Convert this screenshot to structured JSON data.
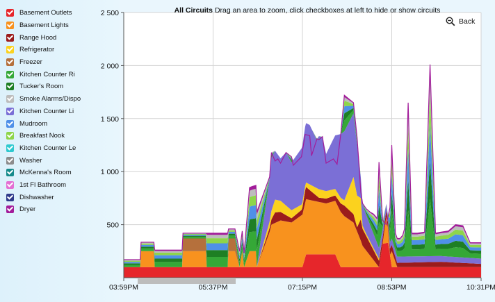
{
  "header": {
    "title": "All Circuits",
    "subtitle": "Drag an area to zoom, click checkboxes at left to hide or show  circuits",
    "back_label": "Back"
  },
  "legend": {
    "items": [
      {
        "label": "Basement Outlets",
        "color": "#e6262b",
        "checked": true
      },
      {
        "label": "Basement Lights",
        "color": "#f8921e",
        "checked": true
      },
      {
        "label": "Range Hood",
        "color": "#9b1c1c",
        "checked": true
      },
      {
        "label": "Refrigerator",
        "color": "#fbd21e",
        "checked": true
      },
      {
        "label": " Freezer",
        "color": "#b5703c",
        "checked": true
      },
      {
        "label": "Kitchen Counter Ri",
        "color": "#35a837",
        "checked": true
      },
      {
        "label": "Tucker's Room",
        "color": "#1e7f24",
        "checked": true
      },
      {
        "label": "Smoke Alarms/Dispo",
        "color": "#bdbdbd",
        "checked": true
      },
      {
        "label": "Kitchen Counter Li",
        "color": "#7b6fd6",
        "checked": true
      },
      {
        "label": "Mudroom",
        "color": "#4f90e8",
        "checked": true
      },
      {
        "label": "Breakfast Nook",
        "color": "#8ed54a",
        "checked": true
      },
      {
        "label": "Kitchen Counter Le",
        "color": "#2ec9cf",
        "checked": true
      },
      {
        "label": "Washer",
        "color": "#8c8c8c",
        "checked": true
      },
      {
        "label": "McKenna's Room",
        "color": "#168b8b",
        "checked": true
      },
      {
        "label": "1st Fl Bathroom",
        "color": "#e46fd3",
        "checked": true
      },
      {
        "label": "Dishwasher",
        "color": "#2f3a8a",
        "checked": true
      },
      {
        "label": "Dryer",
        "color": "#a21c9a",
        "checked": true
      }
    ]
  },
  "chart_data": {
    "type": "area",
    "stacked": true,
    "title": "All Circuits",
    "xlabel": "",
    "ylabel": "",
    "x_domain": [
      0,
      392
    ],
    "x_tick_values": [
      0,
      98,
      196,
      294,
      392
    ],
    "x_tick_labels": [
      "03:59PM",
      "05:37PM",
      "07:15PM",
      "08:53PM",
      "10:31PM"
    ],
    "ylim": [
      0,
      2500
    ],
    "y_tick_values": [
      500,
      1000,
      1500,
      2000,
      2500
    ],
    "y_tick_labels": [
      "500",
      "1 000",
      "1 500",
      "2 000",
      "2 500"
    ],
    "grid": true,
    "legend_position": "left",
    "totals_envelope": {
      "x": [
        0,
        18,
        19,
        33,
        34,
        64,
        65,
        90,
        91,
        114,
        115,
        122,
        127,
        130,
        132,
        138,
        141,
        145,
        146,
        160,
        162,
        166,
        169,
        172,
        178,
        184,
        186,
        195,
        199,
        204,
        206,
        212,
        214,
        218,
        222,
        230,
        234,
        238,
        242,
        252,
        256,
        260,
        262,
        266,
        270,
        274,
        278,
        280,
        284,
        288,
        292,
        294,
        298,
        300,
        303,
        306,
        308,
        312,
        316,
        322,
        330,
        336,
        342,
        348,
        356,
        364,
        372,
        380,
        392
      ],
      "y": [
        170,
        170,
        335,
        335,
        260,
        260,
        420,
        420,
        420,
        420,
        460,
        460,
        250,
        440,
        230,
        850,
        860,
        870,
        620,
        950,
        1180,
        1100,
        1120,
        1080,
        1180,
        1140,
        1060,
        1140,
        1350,
        1340,
        1150,
        1310,
        1300,
        1330,
        1080,
        1120,
        1070,
        1350,
        1720,
        1650,
        1320,
        810,
        700,
        650,
        620,
        600,
        560,
        1090,
        540,
        500,
        660,
        1250,
        420,
        370,
        370,
        400,
        460,
        1650,
        420,
        420,
        430,
        2010,
        420,
        430,
        440,
        500,
        490,
        330,
        330
      ]
    },
    "series": [
      {
        "name": "Basement Outlets",
        "x": [
          0,
          196,
          200,
          232,
          238,
          280,
          284,
          290,
          294,
          330,
          334,
          392
        ],
        "values": [
          100,
          100,
          220,
          220,
          100,
          100,
          320,
          330,
          100,
          100,
          100,
          100
        ]
      },
      {
        "name": "Basement Lights",
        "x": [
          0,
          18,
          19,
          33,
          34,
          64,
          65,
          90,
          91,
          114,
          115,
          122,
          127,
          130,
          132,
          138,
          145,
          146,
          160,
          162,
          172,
          184,
          200,
          222,
          238,
          242,
          252,
          260,
          262,
          280,
          284,
          288,
          292,
          294,
          300,
          392
        ],
        "values": [
          0,
          0,
          150,
          150,
          0,
          0,
          150,
          150,
          0,
          0,
          150,
          150,
          0,
          150,
          0,
          150,
          150,
          0,
          330,
          400,
          440,
          420,
          520,
          480,
          520,
          480,
          420,
          250,
          200,
          0,
          0,
          250,
          0,
          150,
          0,
          0
        ]
      },
      {
        "name": "Range Hood",
        "x": [
          0,
          146,
          160,
          162,
          166,
          184,
          195,
          199,
          214,
          230,
          232,
          242,
          252,
          256,
          260,
          262,
          280,
          284,
          290,
          294,
          300,
          348,
          392
        ],
        "values": [
          0,
          0,
          40,
          50,
          100,
          40,
          50,
          120,
          40,
          50,
          50,
          100,
          80,
          40,
          200,
          160,
          60,
          60,
          60,
          60,
          40,
          50,
          30
        ]
      },
      {
        "name": "Refrigerator",
        "x": [
          0,
          146,
          160,
          162,
          166,
          199,
          214,
          242,
          252,
          256,
          260,
          262,
          266,
          280,
          284,
          288,
          292,
          294,
          300,
          392
        ],
        "values": [
          0,
          0,
          60,
          80,
          120,
          40,
          80,
          50,
          350,
          300,
          200,
          30,
          20,
          20,
          0,
          0,
          0,
          0,
          0,
          0
        ]
      },
      {
        "name": " Freezer",
        "x": [
          0,
          64,
          65,
          90,
          91,
          114,
          115,
          122,
          127,
          160,
          162,
          392
        ],
        "values": [
          0,
          0,
          120,
          120,
          0,
          0,
          120,
          120,
          0,
          0,
          0,
          0
        ]
      },
      {
        "name": "Kitchen Counter Li",
        "x": [
          0,
          146,
          160,
          162,
          172,
          178,
          184,
          199,
          204,
          212,
          214,
          218,
          222,
          238,
          242,
          252,
          256,
          260,
          262,
          280,
          284,
          288,
          392
        ],
        "values": [
          0,
          0,
          400,
          500,
          400,
          500,
          450,
          560,
          560,
          450,
          500,
          500,
          350,
          600,
          650,
          600,
          470,
          200,
          200,
          100,
          80,
          60,
          50
        ]
      }
    ]
  }
}
